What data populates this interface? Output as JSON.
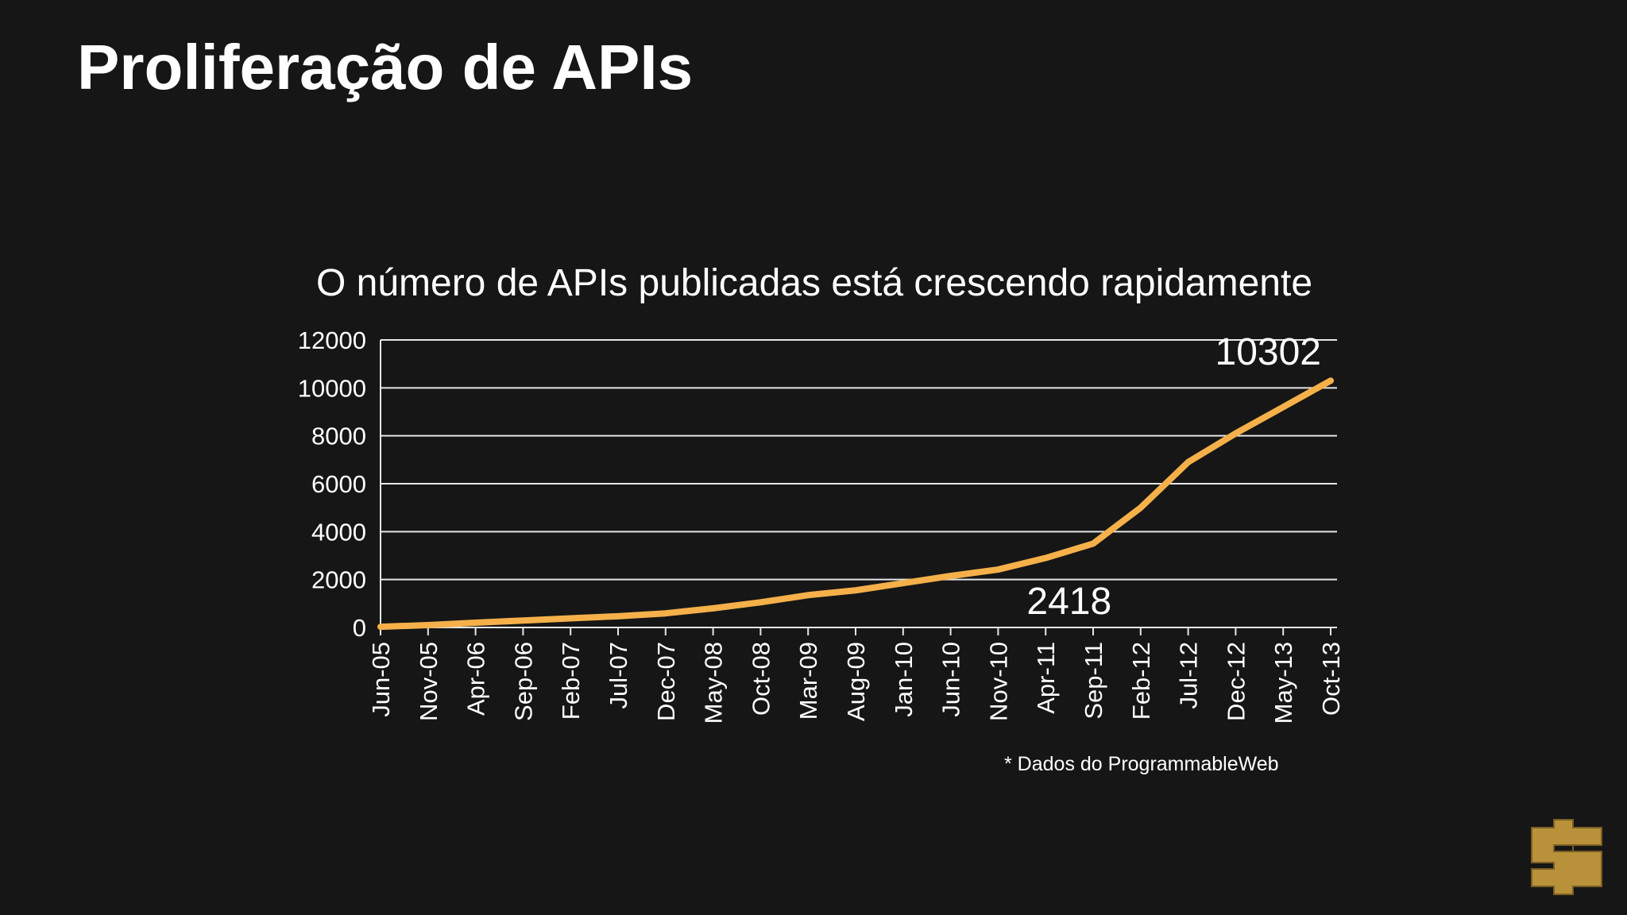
{
  "title": "Proliferação de APIs",
  "footnote": "* Dados do ProgrammableWeb",
  "chart_data": {
    "type": "line",
    "title": "O número de APIs publicadas está crescendo rapidamente",
    "categories": [
      "Jun-05",
      "Nov-05",
      "Apr-06",
      "Sep-06",
      "Feb-07",
      "Jul-07",
      "Dec-07",
      "May-08",
      "Oct-08",
      "Mar-09",
      "Aug-09",
      "Jan-10",
      "Jun-10",
      "Nov-10",
      "Apr-11",
      "Sep-11",
      "Feb-12",
      "Jul-12",
      "Dec-12",
      "May-13",
      "Oct-13"
    ],
    "series": [
      {
        "name": "APIs",
        "color": "#f5b04a",
        "values": [
          30,
          100,
          200,
          290,
          380,
          470,
          590,
          800,
          1050,
          1350,
          1550,
          1850,
          2150,
          2418,
          2900,
          3500,
          5000,
          6900,
          8100,
          9200,
          10302
        ],
        "value_labels": [
          null,
          null,
          null,
          null,
          null,
          null,
          null,
          null,
          null,
          null,
          null,
          null,
          null,
          "2418",
          null,
          null,
          null,
          null,
          null,
          null,
          "10302"
        ]
      }
    ],
    "ylim": [
      0,
      12000
    ],
    "yticks": [
      0,
      2000,
      4000,
      6000,
      8000,
      10000,
      12000
    ],
    "grid": true
  }
}
